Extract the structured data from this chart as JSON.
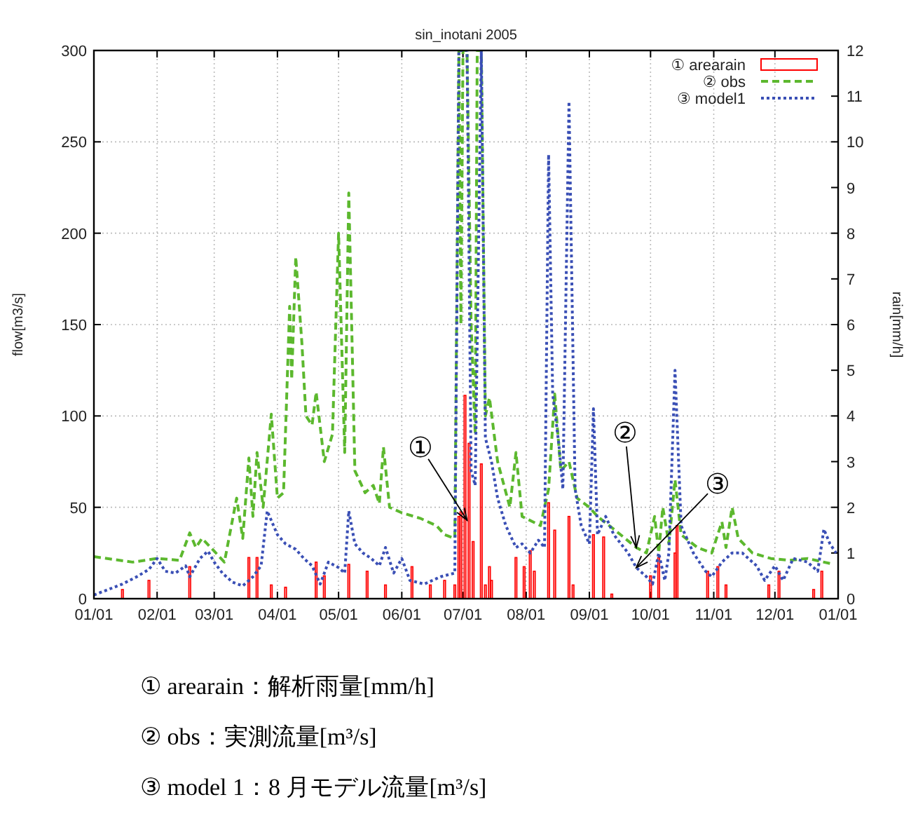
{
  "chart_data": {
    "type": "line",
    "title": "sin_inotani 2005",
    "ylabel": "flow[m3/s]",
    "y2label": "rain[mm/h]",
    "xlim": [
      "2005-01-01",
      "2006-01-01"
    ],
    "xticks": [
      {
        "value": "2005-01-01",
        "label": "01/01"
      },
      {
        "value": "2005-02-01",
        "label": "02/01"
      },
      {
        "value": "2005-03-01",
        "label": "03/01"
      },
      {
        "value": "2005-04-01",
        "label": "04/01"
      },
      {
        "value": "2005-05-01",
        "label": "05/01"
      },
      {
        "value": "2005-06-01",
        "label": "06/01"
      },
      {
        "value": "2005-07-01",
        "label": "07/01"
      },
      {
        "value": "2005-08-01",
        "label": "08/01"
      },
      {
        "value": "2005-09-01",
        "label": "09/01"
      },
      {
        "value": "2005-10-01",
        "label": "10/01"
      },
      {
        "value": "2005-11-01",
        "label": "11/01"
      },
      {
        "value": "2005-12-01",
        "label": "12/01"
      },
      {
        "value": "2006-01-01",
        "label": "01/01"
      }
    ],
    "ylim": [
      0,
      300
    ],
    "yticks": [
      0,
      50,
      100,
      150,
      200,
      250,
      300
    ],
    "y2lim": [
      0,
      12
    ],
    "y2ticks": [
      0,
      1,
      2,
      3,
      4,
      5,
      6,
      7,
      8,
      9,
      10,
      11,
      12
    ],
    "grid": true,
    "legend": "top right",
    "series": [
      {
        "name": "① arearain",
        "type": "bar",
        "axis": "y2",
        "color": "#ff0000",
        "x": [
          "2005-01-15",
          "2005-01-28",
          "2005-02-17",
          "2005-03-18",
          "2005-03-22",
          "2005-03-29",
          "2005-04-05",
          "2005-04-20",
          "2005-04-24",
          "2005-05-06",
          "2005-05-15",
          "2005-05-24",
          "2005-06-06",
          "2005-06-15",
          "2005-06-22",
          "2005-06-27",
          "2005-06-29",
          "2005-06-30",
          "2005-07-02",
          "2005-07-04",
          "2005-07-06",
          "2005-07-10",
          "2005-07-12",
          "2005-07-14",
          "2005-07-15",
          "2005-07-27",
          "2005-07-31",
          "2005-08-03",
          "2005-08-05",
          "2005-08-12",
          "2005-08-15",
          "2005-08-22",
          "2005-08-24",
          "2005-09-03",
          "2005-09-08",
          "2005-09-12",
          "2005-10-01",
          "2005-10-05",
          "2005-10-13",
          "2005-10-14",
          "2005-10-29",
          "2005-11-03",
          "2005-11-07",
          "2005-11-28",
          "2005-12-03",
          "2005-12-20",
          "2005-12-24"
        ],
        "values": [
          0.2,
          0.4,
          0.7,
          0.9,
          0.9,
          0.3,
          0.25,
          0.8,
          0.5,
          0.75,
          0.6,
          0.3,
          0.7,
          0.3,
          0.4,
          0.3,
          1.8,
          1.9,
          4.45,
          3.4,
          1.25,
          2.95,
          0.3,
          0.7,
          0.4,
          0.9,
          0.7,
          1.05,
          0.6,
          2.1,
          1.5,
          1.8,
          0.3,
          1.4,
          1.35,
          0.1,
          0.5,
          0.9,
          1.0,
          1.6,
          0.6,
          0.7,
          0.3,
          0.3,
          0.6,
          0.2,
          0.6
        ]
      },
      {
        "name": "② obs",
        "line_style": "dashed",
        "color": "#5cb82e",
        "x": [
          "2005-01-01",
          "2005-01-20",
          "2005-02-01",
          "2005-02-12",
          "2005-02-17",
          "2005-02-20",
          "2005-02-23",
          "2005-03-01",
          "2005-03-06",
          "2005-03-12",
          "2005-03-15",
          "2005-03-18",
          "2005-03-20",
          "2005-03-22",
          "2005-03-25",
          "2005-03-29",
          "2005-04-01",
          "2005-04-04",
          "2005-04-07",
          "2005-04-08",
          "2005-04-10",
          "2005-04-13",
          "2005-04-15",
          "2005-04-18",
          "2005-04-20",
          "2005-04-24",
          "2005-04-28",
          "2005-05-01",
          "2005-05-04",
          "2005-05-06",
          "2005-05-09",
          "2005-05-14",
          "2005-05-18",
          "2005-05-21",
          "2005-05-23",
          "2005-05-26",
          "2005-06-01",
          "2005-06-10",
          "2005-06-18",
          "2005-06-22",
          "2005-06-27",
          "2005-06-29",
          "2005-06-30",
          "2005-07-01",
          "2005-07-03",
          "2005-07-05",
          "2005-07-07",
          "2005-07-08",
          "2005-07-10",
          "2005-07-12",
          "2005-07-14",
          "2005-07-18",
          "2005-07-24",
          "2005-07-27",
          "2005-07-30",
          "2005-08-08",
          "2005-08-12",
          "2005-08-15",
          "2005-08-18",
          "2005-08-22",
          "2005-08-26",
          "2005-09-01",
          "2005-09-05",
          "2005-09-13",
          "2005-09-24",
          "2005-09-29",
          "2005-10-03",
          "2005-10-05",
          "2005-10-07",
          "2005-10-10",
          "2005-10-13",
          "2005-10-16",
          "2005-10-24",
          "2005-10-31",
          "2005-11-05",
          "2005-11-07",
          "2005-11-10",
          "2005-11-13",
          "2005-11-20",
          "2005-11-29",
          "2005-12-08",
          "2005-12-17",
          "2005-12-29"
        ],
        "values": [
          23,
          20,
          22,
          21,
          36,
          28,
          33,
          26,
          20,
          55,
          33,
          77,
          45,
          80,
          50,
          101,
          55,
          58,
          160,
          120,
          187,
          140,
          100,
          95,
          113,
          75,
          90,
          200,
          80,
          222,
          70,
          58,
          62,
          52,
          83,
          50,
          47,
          44,
          40,
          35,
          33,
          300,
          150,
          300,
          300,
          150,
          90,
          300,
          300,
          100,
          110,
          75,
          50,
          80,
          45,
          40,
          60,
          112,
          70,
          75,
          55,
          50,
          45,
          38,
          28,
          25,
          45,
          25,
          50,
          30,
          65,
          35,
          28,
          25,
          42,
          28,
          50,
          33,
          25,
          22,
          21,
          22,
          19
        ]
      },
      {
        "name": "③ model1",
        "line_style": "dotted",
        "color": "#3a4fb5",
        "x": [
          "2005-01-01",
          "2005-01-08",
          "2005-01-15",
          "2005-01-22",
          "2005-01-28",
          "2005-02-01",
          "2005-02-05",
          "2005-02-10",
          "2005-02-15",
          "2005-02-17",
          "2005-02-22",
          "2005-02-26",
          "2005-03-01",
          "2005-03-05",
          "2005-03-10",
          "2005-03-15",
          "2005-03-20",
          "2005-03-24",
          "2005-03-27",
          "2005-04-01",
          "2005-04-05",
          "2005-04-10",
          "2005-04-14",
          "2005-04-18",
          "2005-04-22",
          "2005-04-26",
          "2005-05-01",
          "2005-05-04",
          "2005-05-06",
          "2005-05-09",
          "2005-05-13",
          "2005-05-17",
          "2005-05-21",
          "2005-05-24",
          "2005-05-28",
          "2005-06-01",
          "2005-06-05",
          "2005-06-12",
          "2005-06-20",
          "2005-06-27",
          "2005-06-29",
          "2005-07-01",
          "2005-07-03",
          "2005-07-05",
          "2005-07-07",
          "2005-07-10",
          "2005-07-12",
          "2005-07-15",
          "2005-07-18",
          "2005-07-22",
          "2005-07-27",
          "2005-07-30",
          "2005-08-03",
          "2005-08-07",
          "2005-08-10",
          "2005-08-12",
          "2005-08-14",
          "2005-08-17",
          "2005-08-19",
          "2005-08-22",
          "2005-08-25",
          "2005-08-28",
          "2005-09-01",
          "2005-09-03",
          "2005-09-05",
          "2005-09-09",
          "2005-09-13",
          "2005-09-20",
          "2005-09-24",
          "2005-09-29",
          "2005-10-02",
          "2005-10-05",
          "2005-10-08",
          "2005-10-10",
          "2005-10-13",
          "2005-10-16",
          "2005-10-22",
          "2005-10-28",
          "2005-10-31",
          "2005-11-05",
          "2005-11-10",
          "2005-11-15",
          "2005-11-22",
          "2005-11-26",
          "2005-12-01",
          "2005-12-05",
          "2005-12-10",
          "2005-12-17",
          "2005-12-22",
          "2005-12-25",
          "2005-12-28",
          "2005-12-31"
        ],
        "values": [
          2,
          5,
          8,
          12,
          16,
          22,
          15,
          14,
          18,
          12,
          22,
          26,
          20,
          14,
          9,
          7,
          12,
          18,
          48,
          35,
          30,
          27,
          22,
          18,
          8,
          20,
          17,
          14,
          48,
          30,
          25,
          22,
          18,
          28,
          14,
          22,
          10,
          8,
          12,
          14,
          300,
          300,
          300,
          70,
          62,
          300,
          88,
          75,
          55,
          40,
          28,
          30,
          25,
          32,
          28,
          243,
          112,
          85,
          60,
          272,
          60,
          40,
          30,
          104,
          35,
          45,
          35,
          25,
          17,
          12,
          8,
          25,
          10,
          25,
          125,
          40,
          25,
          15,
          12,
          20,
          25,
          25,
          18,
          10,
          18,
          10,
          22,
          20,
          15,
          38,
          30,
          25
        ]
      }
    ],
    "annotations": [
      {
        "text": "①",
        "x": "2005-07-03",
        "y": 43
      },
      {
        "text": "②",
        "x": "2005-09-24",
        "y": 28
      },
      {
        "text": "③",
        "x": "2005-09-24",
        "y": 17
      },
      "① arearain：解析雨量[mm/h]",
      "② obs：実測流量[m³/s]",
      "③ model 1：8 月モデル流量[m³/s]"
    ]
  }
}
